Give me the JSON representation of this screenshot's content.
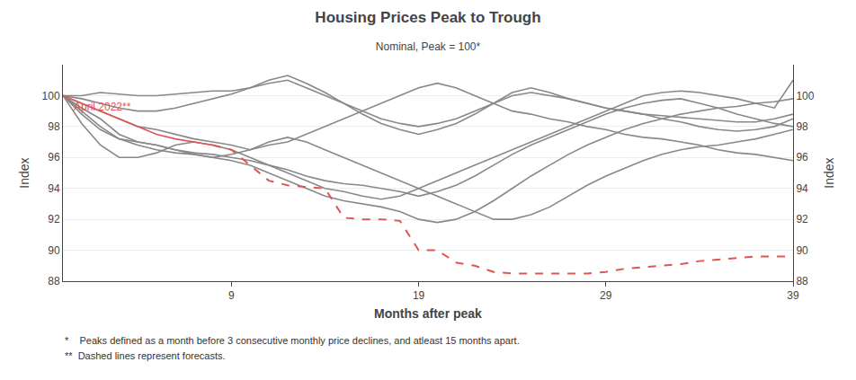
{
  "chart_data": {
    "type": "line",
    "title": "Housing Prices Peak to Trough",
    "subtitle": "Nominal, Peak = 100*",
    "xlabel": "Months after peak",
    "ylabel": "Index",
    "y2label": "Index",
    "annotation": "April 2022**",
    "annotation_color": "#e05555",
    "footnotes": [
      "*    Peaks defined as a month before 3 consecutive monthly price declines, and atleast 15 months apart.",
      "**  Dashed lines represent forecasts."
    ],
    "grid": true,
    "xlim": [
      0,
      39
    ],
    "xticks": [
      9,
      19,
      29,
      39
    ],
    "ylim": [
      88,
      102
    ],
    "yticks": [
      88,
      90,
      92,
      94,
      96,
      98,
      100
    ],
    "y2lim": [
      88,
      102
    ],
    "y2ticks": [
      88,
      90,
      92,
      94,
      96,
      98,
      100
    ],
    "x": [
      0,
      1,
      2,
      3,
      4,
      5,
      6,
      7,
      8,
      9,
      10,
      11,
      12,
      13,
      14,
      15,
      16,
      17,
      18,
      19,
      20,
      21,
      22,
      23,
      24,
      25,
      26,
      27,
      28,
      29,
      30,
      31,
      32,
      33,
      34,
      35,
      36,
      37,
      38,
      39
    ],
    "series": [
      {
        "color": "#888888",
        "line_style": "solid",
        "values": [
          100,
          100.0,
          100.2,
          100.1,
          100.0,
          100.0,
          100.1,
          100.2,
          100.3,
          100.3,
          100.5,
          100.8,
          101.0,
          100.5,
          100.0,
          99.5,
          99.0,
          98.5,
          98.2,
          98.0,
          98.2,
          98.5,
          99.0,
          99.5,
          100.0,
          100.2,
          100.0,
          99.8,
          99.5,
          99.2,
          99.0,
          98.8,
          98.7,
          98.6,
          98.5,
          98.4,
          98.3,
          98.3,
          98.5,
          98.8
        ]
      },
      {
        "color": "#888888",
        "line_style": "solid",
        "values": [
          100,
          99.8,
          99.5,
          99.2,
          99.0,
          99.0,
          99.2,
          99.5,
          99.8,
          100.1,
          100.5,
          101.0,
          101.3,
          100.8,
          100.2,
          99.5,
          98.8,
          98.2,
          97.8,
          97.5,
          97.8,
          98.2,
          98.8,
          99.5,
          100.2,
          100.5,
          100.2,
          99.8,
          99.5,
          99.2,
          99.0,
          98.8,
          98.5,
          98.3,
          98.0,
          97.8,
          97.7,
          97.8,
          98.0,
          98.5
        ]
      },
      {
        "color": "#888888",
        "line_style": "solid",
        "values": [
          100,
          99.5,
          99.0,
          98.5,
          98.0,
          97.8,
          97.5,
          97.2,
          97.0,
          96.8,
          96.5,
          96.8,
          97.0,
          97.5,
          98.0,
          98.5,
          99.0,
          99.5,
          100.0,
          100.5,
          100.8,
          100.5,
          100.0,
          99.5,
          99.0,
          98.8,
          98.5,
          98.3,
          98.0,
          97.8,
          97.5,
          97.3,
          97.2,
          97.0,
          96.8,
          96.5,
          96.3,
          96.2,
          96.0,
          95.8
        ]
      },
      {
        "color": "#888888",
        "line_style": "solid",
        "values": [
          100,
          99.2,
          98.5,
          97.5,
          97.0,
          96.8,
          96.5,
          96.3,
          96.2,
          96.0,
          95.8,
          95.5,
          95.2,
          94.8,
          94.5,
          94.3,
          94.2,
          94.0,
          93.8,
          93.5,
          93.8,
          94.2,
          94.8,
          95.5,
          96.2,
          96.8,
          97.3,
          97.8,
          98.3,
          98.8,
          99.2,
          99.5,
          99.7,
          99.8,
          99.5,
          99.2,
          98.8,
          98.5,
          98.2,
          98.0
        ]
      },
      {
        "color": "#888888",
        "line_style": "solid",
        "values": [
          100,
          99.0,
          98.0,
          97.2,
          96.8,
          96.5,
          96.3,
          96.2,
          96.0,
          95.8,
          95.5,
          95.0,
          94.5,
          94.0,
          93.5,
          93.2,
          93.0,
          92.8,
          92.5,
          92.0,
          91.8,
          92.0,
          92.5,
          93.2,
          94.0,
          94.8,
          95.5,
          96.2,
          96.8,
          97.3,
          97.8,
          98.2,
          98.5,
          98.8,
          99.0,
          99.2,
          99.3,
          99.5,
          99.6,
          99.8
        ]
      },
      {
        "color": "#888888",
        "line_style": "solid",
        "values": [
          100,
          98.8,
          97.8,
          97.2,
          97.0,
          96.8,
          96.5,
          96.2,
          96.0,
          96.2,
          96.5,
          97.0,
          97.3,
          97.0,
          96.5,
          96.0,
          95.5,
          95.0,
          94.5,
          94.0,
          93.5,
          93.0,
          92.5,
          92.0,
          92.0,
          92.3,
          92.8,
          93.5,
          94.2,
          94.8,
          95.3,
          95.8,
          96.2,
          96.5,
          96.7,
          96.8,
          97.0,
          97.2,
          97.5,
          97.8
        ]
      },
      {
        "color": "#888888",
        "line_style": "solid",
        "values": [
          100,
          98.2,
          96.8,
          96.0,
          96.0,
          96.3,
          96.8,
          97.0,
          96.8,
          96.5,
          96.0,
          95.5,
          95.0,
          94.5,
          94.0,
          93.8,
          93.5,
          93.3,
          93.5,
          94.0,
          94.5,
          95.0,
          95.5,
          96.0,
          96.5,
          97.0,
          97.5,
          98.0,
          98.5,
          99.0,
          99.5,
          100.0,
          100.2,
          100.3,
          100.2,
          100.0,
          99.8,
          99.5,
          99.2,
          101.0
        ]
      },
      {
        "color": "#e05555",
        "line_style": "solid",
        "x": [
          0,
          1,
          2,
          3,
          4,
          5,
          6,
          7,
          8
        ],
        "values": [
          100.0,
          99.5,
          99.0,
          98.5,
          98.0,
          97.5,
          97.2,
          97.0,
          96.8
        ]
      },
      {
        "color": "#e05555",
        "line_style": "dashed",
        "x": [
          8,
          9,
          10,
          11,
          12,
          13,
          14,
          15,
          16,
          17,
          18,
          19,
          20,
          21,
          22,
          23,
          24,
          25,
          26,
          27,
          28,
          29,
          30,
          31,
          32,
          33,
          34,
          35,
          36,
          37,
          38,
          39
        ],
        "values": [
          96.8,
          96.5,
          95.5,
          94.5,
          94.2,
          94.1,
          94.0,
          92.1,
          92.0,
          92.0,
          91.9,
          90.0,
          90.0,
          89.2,
          89.0,
          88.6,
          88.5,
          88.5,
          88.5,
          88.5,
          88.5,
          88.6,
          88.8,
          88.9,
          89.0,
          89.1,
          89.3,
          89.4,
          89.5,
          89.6,
          89.6,
          89.6
        ]
      }
    ]
  }
}
